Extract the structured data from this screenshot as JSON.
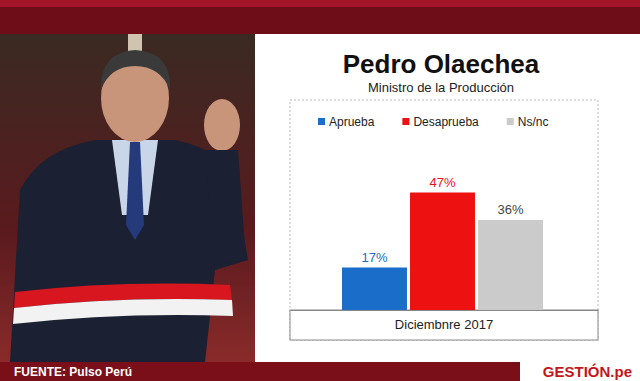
{
  "chart_data": {
    "type": "bar",
    "title": "Pedro Olaechea",
    "subtitle": "Ministro de la Producción",
    "categories": [
      "Diciembnre 2017"
    ],
    "series": [
      {
        "name": "Aprueba",
        "color": "#1a6dc8",
        "values": [
          17
        ],
        "value_labels": [
          "17%"
        ]
      },
      {
        "name": "Desaprueba",
        "color": "#ee1111",
        "values": [
          47
        ],
        "value_labels": [
          "47%"
        ]
      },
      {
        "name": "Ns/nc",
        "color": "#cbcbcb",
        "values": [
          36
        ],
        "value_labels": [
          "36%"
        ]
      }
    ],
    "ylim": [
      0,
      84
    ],
    "data_labels": true,
    "tick_labels": "x",
    "legend": "top"
  },
  "footer": {
    "source": "FUENTE: Pulso Perú",
    "brand": "GESTIÓN.pe"
  }
}
